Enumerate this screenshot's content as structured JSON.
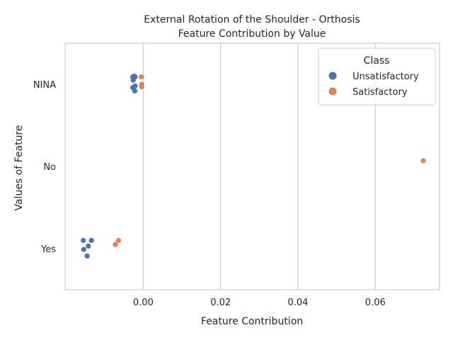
{
  "chart_data": {
    "type": "scatter",
    "title": [
      "External Rotation of the Shoulder - Orthosis",
      "Feature Contribution by Value"
    ],
    "xlabel": "Feature Contribution",
    "ylabel": "Values of Feature",
    "xlim": [
      -0.0202,
      0.0766
    ],
    "x_ticks": [
      0.0,
      0.02,
      0.04,
      0.06
    ],
    "x_tick_labels": [
      "0.00",
      "0.02",
      "0.04",
      "0.06"
    ],
    "categories": [
      "NINA",
      "No",
      "Yes"
    ],
    "grid": true,
    "legend": {
      "title": "Class",
      "placement": "top-right",
      "entries": [
        "Unsatisfactory",
        "Satisfactory"
      ]
    },
    "series": [
      {
        "name": "Unsatisfactory",
        "color": "#4c72b0",
        "points": [
          {
            "category": "NINA",
            "x": -0.0027,
            "jitter": -0.09
          },
          {
            "category": "NINA",
            "x": -0.0024,
            "jitter": -0.1
          },
          {
            "category": "NINA",
            "x": -0.0021,
            "jitter": -0.09
          },
          {
            "category": "NINA",
            "x": -0.0026,
            "jitter": -0.05
          },
          {
            "category": "NINA",
            "x": -0.0021,
            "jitter": 0.02
          },
          {
            "category": "NINA",
            "x": -0.0027,
            "jitter": 0.04
          },
          {
            "category": "NINA",
            "x": -0.0022,
            "jitter": 0.08
          },
          {
            "category": "Yes",
            "x": -0.0155,
            "jitter": -0.1
          },
          {
            "category": "Yes",
            "x": -0.0134,
            "jitter": -0.1
          },
          {
            "category": "Yes",
            "x": -0.0142,
            "jitter": -0.03
          },
          {
            "category": "Yes",
            "x": -0.0154,
            "jitter": 0.01
          },
          {
            "category": "Yes",
            "x": -0.0145,
            "jitter": 0.09
          }
        ]
      },
      {
        "name": "Satisfactory",
        "color": "#dd8452",
        "points": [
          {
            "category": "NINA",
            "x": -0.0005,
            "jitter": -0.09
          },
          {
            "category": "NINA",
            "x": -0.0004,
            "jitter": 0.0
          },
          {
            "category": "NINA",
            "x": -0.0004,
            "jitter": 0.03
          },
          {
            "category": "No",
            "x": 0.0724,
            "jitter": -0.07
          },
          {
            "category": "Yes",
            "x": -0.0064,
            "jitter": -0.1
          },
          {
            "category": "Yes",
            "x": -0.0072,
            "jitter": -0.05
          }
        ]
      }
    ]
  }
}
